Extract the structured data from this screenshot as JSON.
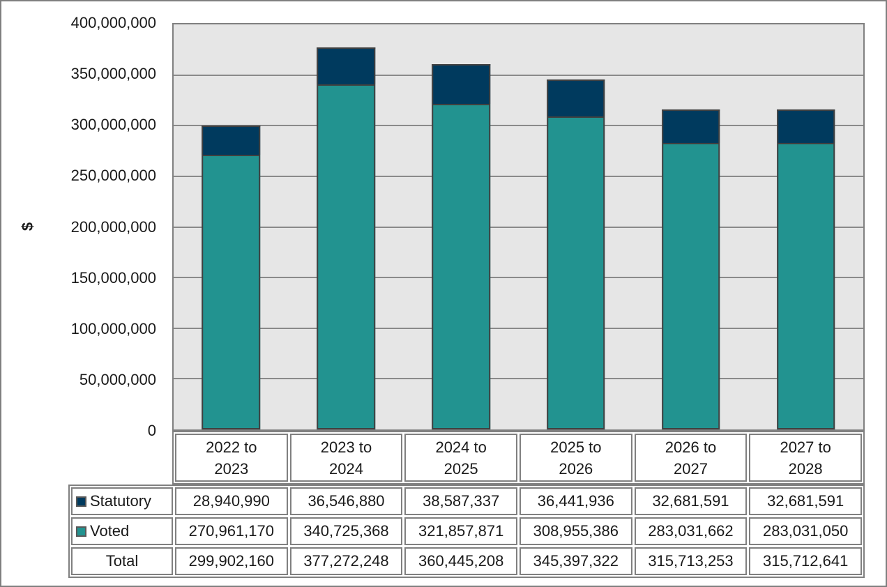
{
  "chart_data": {
    "type": "bar",
    "stacked": true,
    "title": "",
    "xlabel": "",
    "ylabel": "$",
    "categories": [
      "2022 to 2023",
      "2023 to 2024",
      "2024 to 2025",
      "2025 to 2026",
      "2026 to 2027",
      "2027 to 2028"
    ],
    "series": [
      {
        "name": "Statutory",
        "color": "#003a5e",
        "values": [
          28940990,
          36546880,
          38587337,
          36441936,
          32681591,
          32681591
        ]
      },
      {
        "name": "Voted",
        "color": "#229390",
        "values": [
          270961170,
          340725368,
          321857871,
          308955386,
          283031662,
          283031050
        ]
      }
    ],
    "totals": {
      "label": "Total",
      "values": [
        299902160,
        377272248,
        360445208,
        345397322,
        315713253,
        315712641
      ]
    },
    "ylim": [
      0,
      400000000
    ],
    "ytick_step": 50000000,
    "ytick_labels": [
      "400,000,000",
      "350,000,000",
      "300,000,000",
      "250,000,000",
      "200,000,000",
      "150,000,000",
      "100,000,000",
      "50,000,000",
      "0"
    ],
    "grid": true,
    "legend_position": "table-row-labels",
    "plot_background": "#e6e6e6"
  },
  "table": {
    "rows": [
      {
        "label": "Statutory",
        "swatch_color": "#003a5e",
        "values": [
          "28,940,990",
          "36,546,880",
          "38,587,337",
          "36,441,936",
          "32,681,591",
          "32,681,591"
        ]
      },
      {
        "label": "Voted",
        "swatch_color": "#229390",
        "values": [
          "270,961,170",
          "340,725,368",
          "321,857,871",
          "308,955,386",
          "283,031,662",
          "283,031,050"
        ]
      },
      {
        "label": "Total",
        "swatch_color": null,
        "values": [
          "299,902,160",
          "377,272,248",
          "360,445,208",
          "345,397,322",
          "315,713,253",
          "315,712,641"
        ]
      }
    ]
  },
  "colors": {
    "statutory": "#003a5e",
    "voted": "#229390",
    "bar_border": "#404040",
    "grid_line": "#8a8a8a",
    "table_border": "#808080",
    "frame_border": "#7f7f7f",
    "plot_background": "#e6e6e6",
    "swatch_border": "#595959",
    "text": "#1a1a1a"
  }
}
